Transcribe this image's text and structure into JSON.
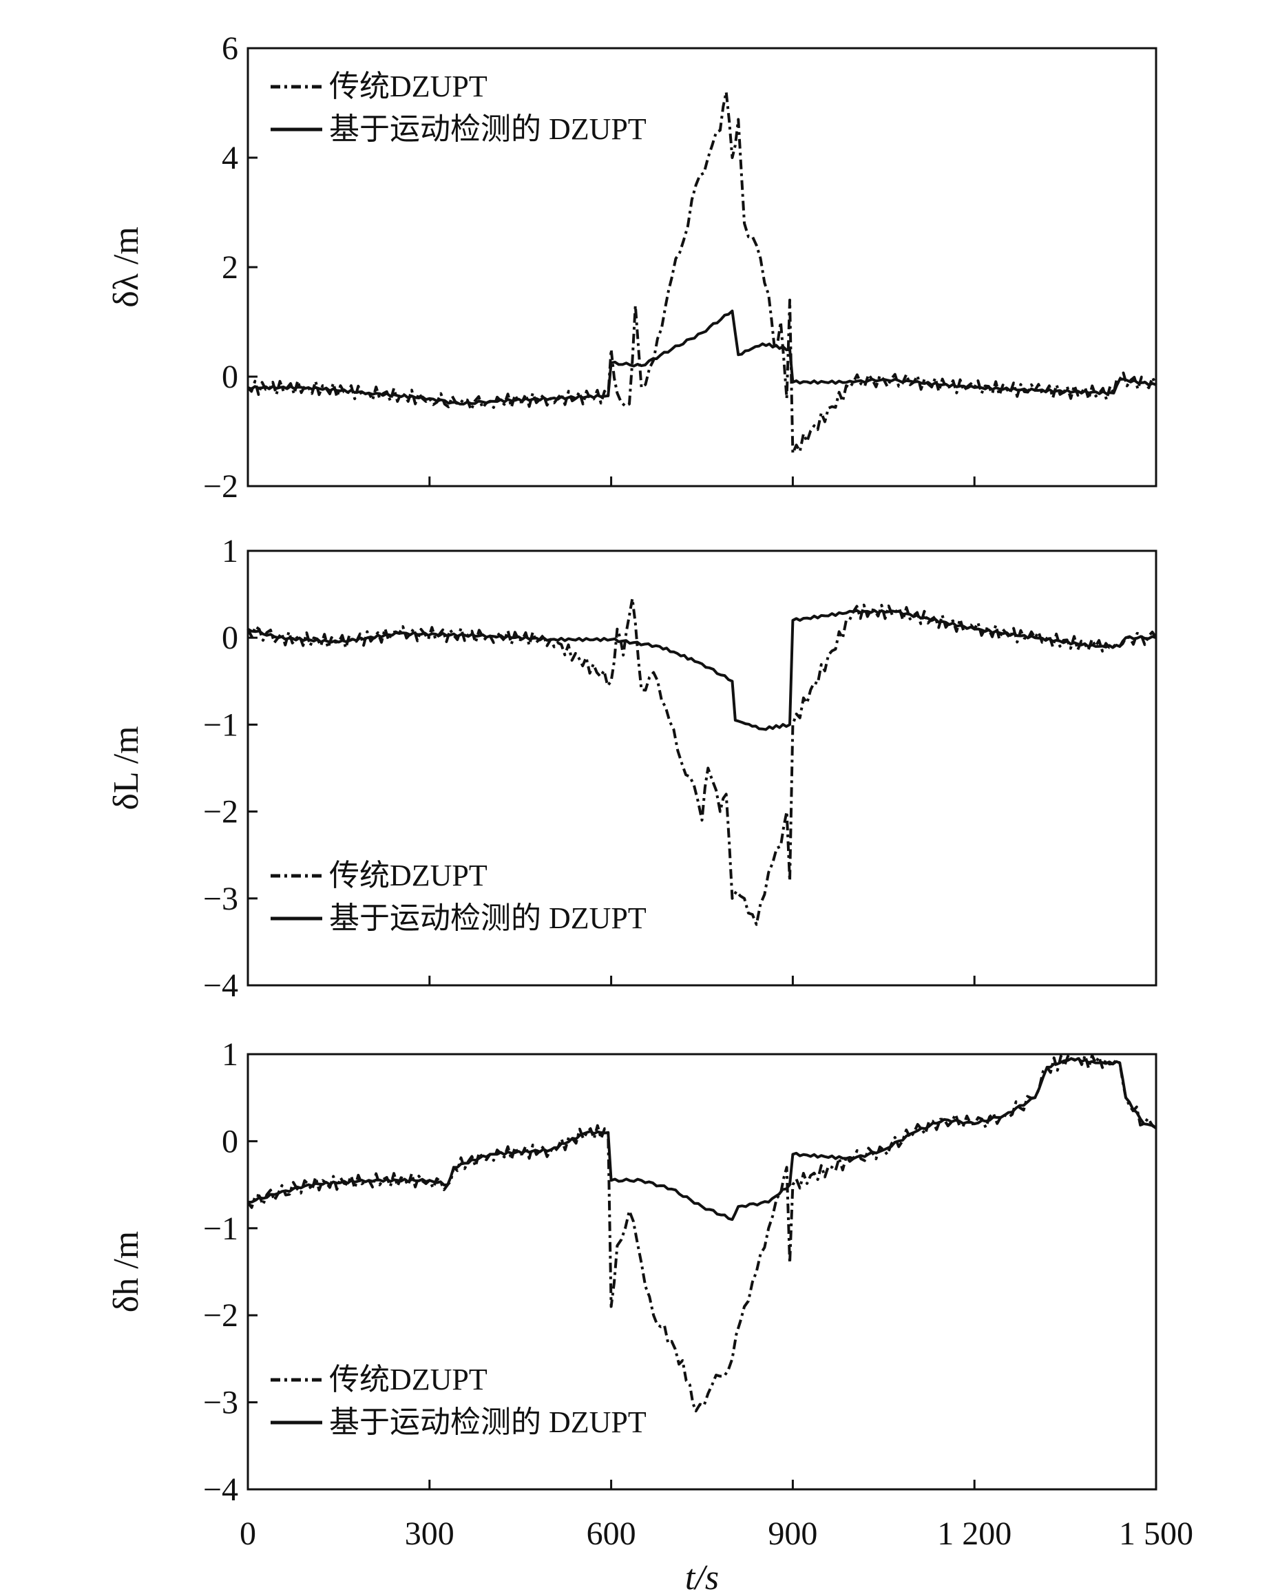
{
  "chart_data": [
    {
      "type": "line",
      "ylabel": "δλ /m",
      "xlim": [
        0,
        1500
      ],
      "ylim": [
        -2,
        6
      ],
      "yticks": [
        -2,
        0,
        2,
        4,
        6
      ],
      "ytick_labels": [
        "−2",
        "0",
        "2",
        "4",
        "6"
      ],
      "legend": "top-left",
      "series": [
        {
          "name": "传统DZUPT",
          "style": "dashdot",
          "points": [
            [
              600,
              0.5
            ],
            [
              610,
              -0.3
            ],
            [
              630,
              -0.5
            ],
            [
              640,
              1.3
            ],
            [
              650,
              -0.2
            ],
            [
              670,
              0.3
            ],
            [
              690,
              1.3
            ],
            [
              700,
              1.8
            ],
            [
              720,
              2.5
            ],
            [
              740,
              3.5
            ],
            [
              760,
              4.0
            ],
            [
              780,
              4.5
            ],
            [
              790,
              5.2
            ],
            [
              800,
              4.0
            ],
            [
              810,
              4.7
            ],
            [
              820,
              2.8
            ],
            [
              840,
              2.4
            ],
            [
              860,
              1.5
            ],
            [
              870,
              0.5
            ],
            [
              880,
              1.0
            ],
            [
              890,
              -0.4
            ],
            [
              895,
              1.4
            ],
            [
              900,
              -1.4
            ]
          ]
        },
        {
          "name": "基于运动检测的 DZUPT",
          "style": "solid",
          "points": [
            [
              0,
              -0.2
            ],
            [
              100,
              -0.2
            ],
            [
              200,
              -0.3
            ],
            [
              300,
              -0.4
            ],
            [
              350,
              -0.5
            ],
            [
              400,
              -0.45
            ],
            [
              500,
              -0.4
            ],
            [
              595,
              -0.35
            ],
            [
              600,
              0.25
            ],
            [
              650,
              0.2
            ],
            [
              700,
              0.5
            ],
            [
              750,
              0.8
            ],
            [
              800,
              1.2
            ],
            [
              810,
              0.4
            ],
            [
              850,
              0.6
            ],
            [
              895,
              0.5
            ],
            [
              900,
              -0.1
            ],
            [
              1000,
              -0.1
            ],
            [
              1050,
              -0.05
            ],
            [
              1100,
              -0.1
            ],
            [
              1200,
              -0.2
            ],
            [
              1300,
              -0.25
            ],
            [
              1430,
              -0.3
            ],
            [
              1440,
              -0.05
            ],
            [
              1500,
              -0.15
            ]
          ]
        }
      ]
    },
    {
      "type": "line",
      "ylabel": "δL /m",
      "xlim": [
        0,
        1500
      ],
      "ylim": [
        -4,
        1
      ],
      "yticks": [
        -4,
        -3,
        -2,
        -1,
        0,
        1
      ],
      "ytick_labels": [
        "−4",
        "−3",
        "−2",
        "−1",
        "0",
        "1"
      ],
      "legend": "bottom-left",
      "series": [
        {
          "name": "传统DZUPT",
          "style": "dashdot",
          "points": [
            [
              600,
              -0.5
            ],
            [
              610,
              0.1
            ],
            [
              620,
              -0.2
            ],
            [
              635,
              0.45
            ],
            [
              650,
              -0.6
            ],
            [
              670,
              -0.4
            ],
            [
              690,
              -0.8
            ],
            [
              710,
              -1.3
            ],
            [
              730,
              -1.6
            ],
            [
              750,
              -2.1
            ],
            [
              760,
              -1.5
            ],
            [
              780,
              -2.0
            ],
            [
              790,
              -1.8
            ],
            [
              800,
              -3.0
            ],
            [
              820,
              -3.0
            ],
            [
              840,
              -3.3
            ],
            [
              860,
              -2.7
            ],
            [
              880,
              -2.4
            ],
            [
              890,
              -2.0
            ],
            [
              895,
              -2.8
            ],
            [
              900,
              -1.0
            ]
          ]
        },
        {
          "name": "基于运动检测的 DZUPT",
          "style": "solid",
          "points": [
            [
              0,
              0.1
            ],
            [
              50,
              0
            ],
            [
              150,
              -0.05
            ],
            [
              250,
              0.05
            ],
            [
              400,
              0.02
            ],
            [
              500,
              -0.02
            ],
            [
              600,
              -0.02
            ],
            [
              680,
              -0.1
            ],
            [
              750,
              -0.3
            ],
            [
              800,
              -0.5
            ],
            [
              805,
              -0.95
            ],
            [
              850,
              -1.05
            ],
            [
              895,
              -1.0
            ],
            [
              900,
              0.2
            ],
            [
              1000,
              0.3
            ],
            [
              1070,
              0.3
            ],
            [
              1200,
              0.1
            ],
            [
              1300,
              0
            ],
            [
              1400,
              -0.1
            ],
            [
              1440,
              -0.1
            ],
            [
              1450,
              0
            ],
            [
              1500,
              0
            ]
          ]
        }
      ]
    },
    {
      "type": "line",
      "ylabel": "δh /m",
      "xlabel": "t/s",
      "xlim": [
        0,
        1500
      ],
      "ylim": [
        -4,
        1
      ],
      "xticks": [
        0,
        300,
        600,
        900,
        1200,
        1500
      ],
      "xtick_labels": [
        "0",
        "300",
        "600",
        "900",
        "1 200",
        "1 500"
      ],
      "yticks": [
        -4,
        -3,
        -2,
        -1,
        0,
        1
      ],
      "ytick_labels": [
        "−4",
        "−3",
        "−2",
        "−1",
        "0",
        "1"
      ],
      "legend": "bottom-left",
      "series": [
        {
          "name": "传统DZUPT",
          "style": "dashdot",
          "points": [
            [
              600,
              -1.9
            ],
            [
              610,
              -1.2
            ],
            [
              630,
              -0.8
            ],
            [
              650,
              -1.4
            ],
            [
              670,
              -2.0
            ],
            [
              700,
              -2.3
            ],
            [
              730,
              -2.8
            ],
            [
              740,
              -3.1
            ],
            [
              760,
              -2.9
            ],
            [
              780,
              -2.7
            ],
            [
              800,
              -2.5
            ],
            [
              820,
              -1.9
            ],
            [
              840,
              -1.5
            ],
            [
              860,
              -1.0
            ],
            [
              880,
              -0.6
            ],
            [
              890,
              -0.3
            ],
            [
              895,
              -1.4
            ],
            [
              900,
              -0.5
            ]
          ]
        },
        {
          "name": "基于运动检测的 DZUPT",
          "style": "solid",
          "points": [
            [
              0,
              -0.7
            ],
            [
              50,
              -0.6
            ],
            [
              100,
              -0.5
            ],
            [
              200,
              -0.45
            ],
            [
              300,
              -0.45
            ],
            [
              330,
              -0.5
            ],
            [
              340,
              -0.3
            ],
            [
              400,
              -0.15
            ],
            [
              500,
              -0.1
            ],
            [
              560,
              0.1
            ],
            [
              595,
              0.1
            ],
            [
              600,
              -0.45
            ],
            [
              650,
              -0.45
            ],
            [
              700,
              -0.55
            ],
            [
              750,
              -0.75
            ],
            [
              800,
              -0.9
            ],
            [
              810,
              -0.75
            ],
            [
              860,
              -0.7
            ],
            [
              895,
              -0.5
            ],
            [
              900,
              -0.15
            ],
            [
              1000,
              -0.2
            ],
            [
              1050,
              -0.1
            ],
            [
              1100,
              0.1
            ],
            [
              1150,
              0.25
            ],
            [
              1200,
              0.2
            ],
            [
              1250,
              0.3
            ],
            [
              1300,
              0.5
            ],
            [
              1320,
              0.85
            ],
            [
              1360,
              0.95
            ],
            [
              1400,
              0.9
            ],
            [
              1440,
              0.9
            ],
            [
              1450,
              0.5
            ],
            [
              1480,
              0.2
            ],
            [
              1500,
              0.15
            ]
          ]
        }
      ]
    }
  ]
}
